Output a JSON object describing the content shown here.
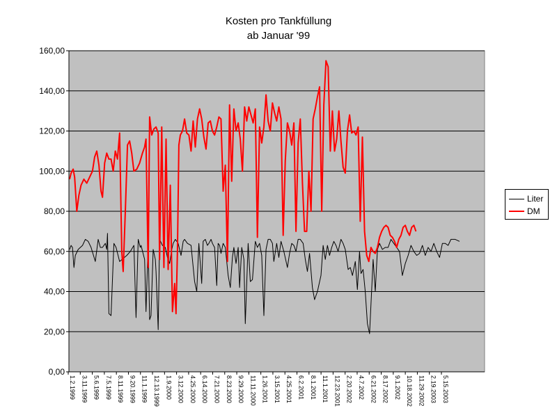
{
  "chart_data": {
    "type": "line",
    "title": "Kosten pro Tankfüllung",
    "subtitle": "ab Januar '99",
    "xlabel": "",
    "ylabel": "",
    "ylim": [
      0,
      160
    ],
    "y_ticks": [
      "0,00",
      "20,00",
      "40,00",
      "60,00",
      "80,00",
      "100,00",
      "120,00",
      "140,00",
      "160,00"
    ],
    "x_ticks": [
      "1.2.1999",
      "3.11.1999",
      "5.6.1999",
      "7.5.1999",
      "8.11.1999",
      "9.20.1999",
      "11.1.1999",
      "12.13.1999",
      "1.9.2000",
      "3.12.2000",
      "4.25.2000",
      "6.14.2000",
      "7.21.2000",
      "8.23.2000",
      "9.29.2000",
      "11.11.2000",
      "1.26.2001",
      "3.15.2001",
      "4.25.2001",
      "6.2.2001",
      "8.1.2001",
      "11.1.2001",
      "12.23.2001",
      "2.20.2002",
      "4.7.2002",
      "6.21.2002",
      "8.17.2002",
      "9.1.2002",
      "10.18.2002",
      "11.29.2002",
      "2.19.2003",
      "5.15.2003"
    ],
    "plot_background": "#c0c0c0",
    "gridlines": true,
    "legend_position": "right",
    "series": [
      {
        "name": "Liter",
        "color": "#000000",
        "values": [
          61,
          63,
          62,
          52,
          58,
          61,
          63,
          66,
          65,
          62,
          55,
          66,
          62,
          62,
          64,
          61,
          69,
          29,
          28,
          64,
          62,
          55,
          58,
          60,
          63,
          27,
          66,
          62,
          63,
          56,
          30,
          64,
          26,
          28,
          61,
          56,
          50,
          21,
          66,
          63,
          62,
          57,
          54,
          61,
          64,
          66,
          64,
          58,
          65,
          66,
          64,
          63,
          45,
          40,
          64,
          44,
          65,
          66,
          63,
          64,
          66,
          64,
          62,
          43,
          64,
          63,
          59,
          64,
          62,
          48,
          42,
          57,
          62,
          54,
          62,
          42,
          62,
          56,
          24,
          64,
          45,
          46,
          65,
          62,
          64,
          58,
          28,
          61,
          66,
          66,
          64,
          55,
          64,
          57,
          65,
          60,
          52,
          59,
          64,
          63,
          60,
          66,
          66,
          64,
          56,
          50,
          59,
          42,
          36,
          40,
          48,
          63,
          56,
          63,
          58,
          62,
          65,
          63,
          60,
          66,
          64,
          61,
          51,
          52,
          48,
          55,
          41,
          60,
          49,
          51,
          40,
          24,
          19,
          56,
          40,
          61,
          64,
          61,
          62,
          62,
          66,
          64,
          62,
          60,
          48,
          54,
          58,
          63,
          60,
          58,
          59,
          63,
          58,
          62,
          60,
          64,
          60,
          57,
          64,
          64,
          63,
          66,
          66,
          65
        ],
        "offsets": [
          0,
          2,
          4,
          6,
          8,
          12,
          18,
          22,
          26,
          30,
          36,
          40,
          43,
          46,
          50,
          52,
          53,
          55,
          58,
          62,
          65,
          70,
          80,
          85,
          90,
          93,
          96,
          99,
          100,
          105,
          107,
          110,
          112,
          114,
          117,
          120,
          121,
          124,
          126,
          130,
          134,
          137,
          140,
          143,
          145,
          148,
          152,
          156,
          159,
          161,
          165,
          170,
          175,
          178,
          181,
          185,
          187,
          190,
          193,
          195,
          198,
          200,
          203,
          206,
          208,
          210,
          212,
          215,
          218,
          222,
          225,
          228,
          230,
          233,
          236,
          238,
          241,
          244,
          246,
          250,
          253,
          256,
          260,
          263,
          266,
          269,
          272,
          275,
          278,
          281,
          284,
          286,
          290,
          293,
          296,
          300,
          305,
          308,
          311,
          314,
          317,
          320,
          323,
          327,
          330,
          333,
          336,
          340,
          343,
          347,
          352,
          355,
          358,
          361,
          364,
          367,
          370,
          373,
          376,
          380,
          383,
          386,
          390,
          393,
          396,
          400,
          403,
          406,
          408,
          411,
          414,
          417,
          420,
          425,
          428,
          431,
          434,
          438,
          442,
          446,
          450,
          454,
          458,
          462,
          466,
          470,
          474,
          478,
          482,
          486,
          490,
          494,
          498,
          502,
          506,
          510,
          514,
          518,
          522,
          526,
          530,
          534,
          540,
          546
        ]
      },
      {
        "name": "DM",
        "color": "#ff0000",
        "values": [
          96,
          99,
          101,
          97,
          80,
          88,
          93,
          96,
          94,
          97,
          100,
          107,
          110,
          103,
          90,
          87,
          104,
          109,
          106,
          106,
          100,
          110,
          106,
          119,
          60,
          50,
          80,
          113,
          115,
          109,
          100,
          101,
          104,
          109,
          112,
          116,
          52,
          127,
          118,
          121,
          122,
          119,
          56,
          122,
          52,
          116,
          51,
          93,
          30,
          44,
          29,
          61,
          113,
          118,
          120,
          126,
          119,
          118,
          110,
          125,
          112,
          126,
          131,
          126,
          117,
          111,
          124,
          125,
          120,
          118,
          122,
          127,
          126,
          90,
          103,
          55,
          133,
          95,
          131,
          120,
          124,
          116,
          100,
          132,
          125,
          132,
          128,
          124,
          131,
          67,
          122,
          114,
          122,
          138,
          125,
          120,
          134,
          129,
          125,
          132,
          126,
          68,
          105,
          124,
          120,
          113,
          124,
          70,
          114,
          126,
          94,
          70,
          70,
          100,
          80,
          126,
          131,
          137,
          142,
          80,
          133,
          155,
          152,
          110,
          130,
          110,
          116,
          130,
          115,
          102,
          99,
          120,
          128,
          119,
          120,
          118,
          122,
          75,
          117,
          70,
          58,
          55,
          62,
          60,
          59,
          62,
          67,
          70,
          72,
          73,
          72,
          68,
          67,
          65,
          62,
          66,
          68,
          72,
          73,
          70,
          68,
          72,
          73,
          70
        ],
        "offsets": [
          0,
          2,
          5,
          7,
          10,
          13,
          16,
          20,
          24,
          28,
          32,
          35,
          38,
          41,
          44,
          46,
          49,
          52,
          55,
          58,
          61,
          64,
          67,
          70,
          73,
          75,
          78,
          81,
          84,
          87,
          90,
          94,
          98,
          102,
          105,
          107,
          110,
          112,
          115,
          118,
          121,
          124,
          126,
          129,
          132,
          135,
          138,
          141,
          144,
          147,
          149,
          151,
          153,
          155,
          158,
          161,
          164,
          167,
          170,
          173,
          176,
          179,
          182,
          185,
          188,
          191,
          194,
          197,
          200,
          203,
          206,
          209,
          212,
          215,
          218,
          221,
          224,
          227,
          230,
          233,
          236,
          239,
          242,
          245,
          248,
          251,
          254,
          257,
          260,
          263,
          266,
          269,
          272,
          275,
          278,
          281,
          284,
          287,
          290,
          293,
          296,
          299,
          302,
          305,
          308,
          311,
          314,
          317,
          320,
          323,
          326,
          329,
          332,
          335,
          338,
          341,
          344,
          347,
          350,
          353,
          356,
          359,
          362,
          365,
          368,
          371,
          374,
          377,
          380,
          383,
          386,
          389,
          392,
          395,
          398,
          401,
          404,
          407,
          410,
          413,
          416,
          419,
          422,
          425,
          428,
          431,
          434,
          437,
          440,
          443,
          446,
          449,
          452,
          455,
          458,
          461,
          464,
          467,
          470,
          473,
          476,
          479,
          482,
          485
        ]
      }
    ]
  }
}
